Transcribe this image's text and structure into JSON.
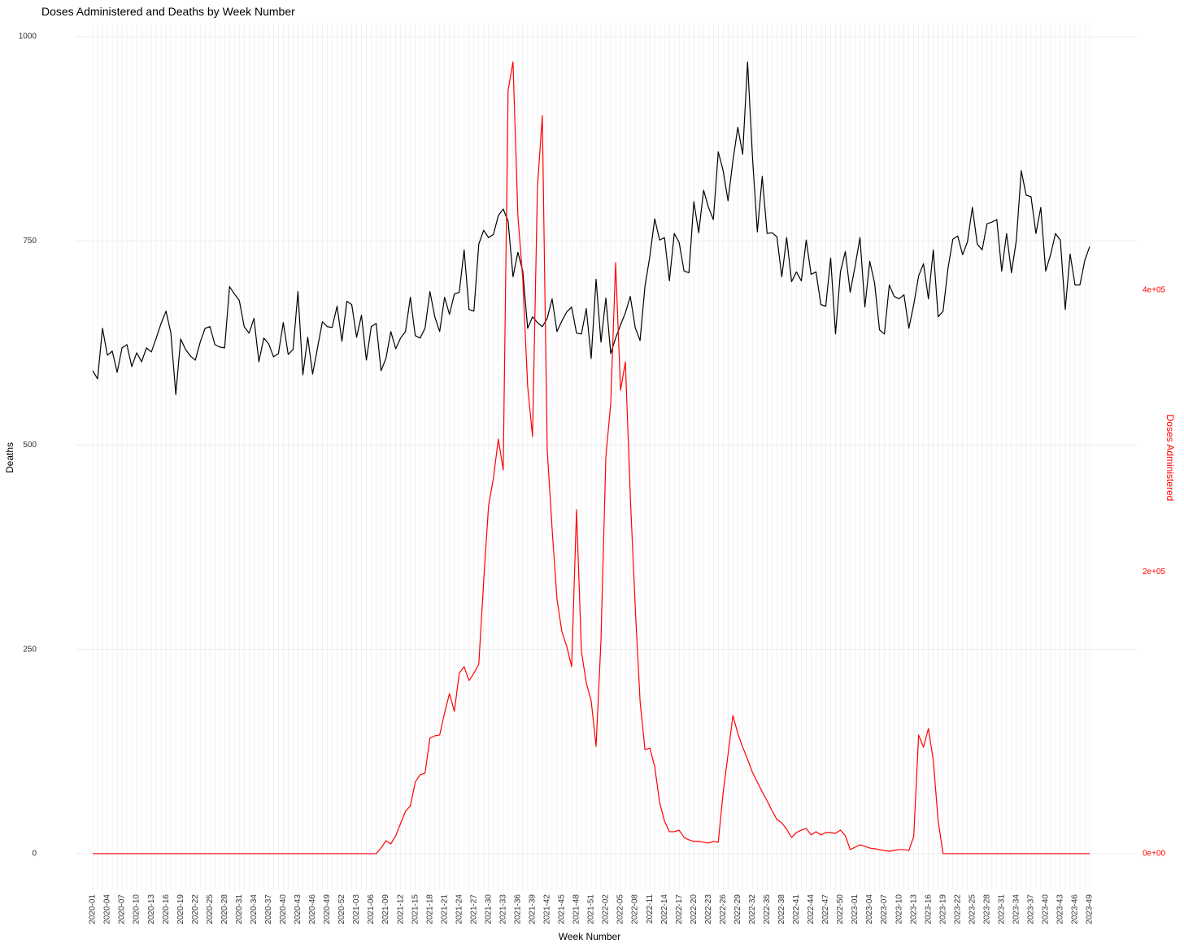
{
  "chart_data": {
    "type": "line",
    "title": "Doses Administered and Deaths by Week Number",
    "x_label": "Week Number",
    "y_label": "Deaths",
    "y2_label": "Doses Administered",
    "grid": true,
    "ylim": [
      -45,
      1017
    ],
    "yticks": [
      0,
      250,
      500,
      750,
      1000
    ],
    "y2lim": [
      -26000,
      590000
    ],
    "y2ticks": [
      {
        "value": 0,
        "label": "0e+00"
      },
      {
        "value": 200000,
        "label": "2e+05"
      },
      {
        "value": 400000,
        "label": "4e+05"
      }
    ],
    "y2_color": "#ff0000",
    "categories": [
      "2020-01",
      null,
      null,
      "2020-04",
      null,
      null,
      "2020-07",
      null,
      null,
      "2020-10",
      null,
      null,
      "2020-13",
      null,
      null,
      "2020-16",
      null,
      null,
      "2020-19",
      null,
      null,
      "2020-22",
      null,
      null,
      "2020-25",
      null,
      null,
      "2020-28",
      null,
      null,
      "2020-31",
      null,
      null,
      "2020-34",
      null,
      null,
      "2020-37",
      null,
      null,
      "2020-40",
      null,
      null,
      "2020-43",
      null,
      null,
      "2020-46",
      null,
      null,
      "2020-49",
      null,
      null,
      "2020-52",
      null,
      null,
      "2021-03",
      null,
      null,
      "2021-06",
      null,
      null,
      "2021-09",
      null,
      null,
      "2021-12",
      null,
      null,
      "2021-15",
      null,
      null,
      "2021-18",
      null,
      null,
      "2021-21",
      null,
      null,
      "2021-24",
      null,
      null,
      "2021-27",
      null,
      null,
      "2021-30",
      null,
      null,
      "2021-33",
      null,
      null,
      "2021-36",
      null,
      null,
      "2021-39",
      null,
      null,
      "2021-42",
      null,
      null,
      "2021-45",
      null,
      null,
      "2021-48",
      null,
      null,
      "2021-51",
      null,
      null,
      "2022-02",
      null,
      null,
      "2022-05",
      null,
      null,
      "2022-08",
      null,
      null,
      "2022-11",
      null,
      null,
      "2022-14",
      null,
      null,
      "2022-17",
      null,
      null,
      "2022-20",
      null,
      null,
      "2022-23",
      null,
      null,
      "2022-26",
      null,
      null,
      "2022-29",
      null,
      null,
      "2022-32",
      null,
      null,
      "2022-35",
      null,
      null,
      "2022-38",
      null,
      null,
      "2022-41",
      null,
      null,
      "2022-44",
      null,
      null,
      "2022-47",
      null,
      null,
      "2022-50",
      null,
      null,
      "2023-01",
      null,
      null,
      "2023-04",
      null,
      null,
      "2023-07",
      null,
      null,
      "2023-10",
      null,
      null,
      "2023-13",
      null,
      null,
      "2023-16",
      null,
      null,
      "2023-19",
      null,
      null,
      "2023-22",
      null,
      null,
      "2023-25",
      null,
      null,
      "2023-28",
      null,
      null,
      "2023-31",
      null,
      null,
      "2023-34",
      null,
      null,
      "2023-37",
      null,
      null,
      "2023-40",
      null,
      null,
      "2023-43",
      null,
      null,
      "2023-46",
      null,
      null,
      "2023-49"
    ],
    "series": [
      {
        "color": "#000000",
        "values": [
          591,
          581,
          643,
          610,
          615,
          589,
          619,
          623,
          596,
          613,
          602,
          619,
          614,
          631,
          649,
          664,
          637,
          562,
          630,
          617,
          609,
          604,
          626,
          643,
          645,
          623,
          620,
          619,
          694,
          685,
          677,
          645,
          637,
          655,
          602,
          631,
          624,
          608,
          612,
          650,
          611,
          617,
          688,
          586,
          632,
          587,
          619,
          651,
          645,
          644,
          670,
          627,
          676,
          672,
          632,
          659,
          604,
          645,
          649,
          591,
          606,
          639,
          618,
          631,
          639,
          681,
          634,
          631,
          643,
          688,
          657,
          639,
          681,
          660,
          685,
          687,
          739,
          666,
          664,
          746,
          763,
          754,
          758,
          781,
          789,
          774,
          706,
          736,
          713,
          643,
          657,
          650,
          645,
          655,
          679,
          639,
          652,
          663,
          669,
          637,
          636,
          667,
          606,
          703,
          626,
          680,
          612,
          631,
          647,
          662,
          682,
          644,
          628,
          694,
          731,
          777,
          751,
          754,
          701,
          759,
          748,
          713,
          711,
          798,
          760,
          812,
          791,
          776,
          859,
          836,
          799,
          848,
          889,
          856,
          969,
          853,
          761,
          829,
          759,
          760,
          755,
          706,
          754,
          700,
          712,
          701,
          751,
          709,
          712,
          672,
          670,
          729,
          636,
          712,
          737,
          687,
          719,
          754,
          669,
          725,
          698,
          641,
          636,
          696,
          682,
          679,
          684,
          643,
          672,
          707,
          722,
          679,
          739,
          657,
          664,
          716,
          752,
          756,
          733,
          749,
          791,
          746,
          739,
          771,
          773,
          776,
          713,
          759,
          711,
          751,
          836,
          806,
          804,
          759,
          791,
          713,
          733,
          759,
          751,
          666,
          734,
          696,
          696,
          726,
          743
        ]
      },
      {
        "color": "#ff0000",
        "axis": "y2",
        "values": [
          0,
          0,
          0,
          0,
          0,
          0,
          0,
          0,
          0,
          0,
          0,
          0,
          0,
          0,
          0,
          0,
          0,
          0,
          0,
          0,
          0,
          0,
          0,
          0,
          0,
          0,
          0,
          0,
          0,
          0,
          0,
          0,
          0,
          0,
          0,
          0,
          0,
          0,
          0,
          0,
          0,
          0,
          0,
          0,
          0,
          0,
          0,
          0,
          0,
          0,
          0,
          0,
          0,
          0,
          0,
          0,
          0,
          0,
          0,
          4000,
          9200,
          6900,
          12700,
          21400,
          30000,
          34000,
          50800,
          56000,
          57100,
          82000,
          83700,
          84300,
          99900,
          113700,
          101000,
          128100,
          132800,
          122900,
          128100,
          134500,
          193400,
          247000,
          266700,
          294400,
          272400,
          542000,
          562200,
          453100,
          408100,
          331900,
          296100,
          472700,
          524100,
          286900,
          230900,
          180700,
          157600,
          147200,
          132800,
          244200,
          143700,
          121200,
          108500,
          76200,
          151200,
          281700,
          319800,
          419600,
          329000,
          349200,
          254000,
          176000,
          108500,
          73900,
          75000,
          61800,
          36400,
          23100,
          15600,
          15600,
          16700,
          11500,
          9800,
          8700,
          8700,
          8100,
          7500,
          8700,
          8100,
          43300,
          70400,
          98100,
          85400,
          75600,
          67000,
          57700,
          50800,
          43900,
          37500,
          30600,
          24200,
          21900,
          17300,
          11500,
          15000,
          16700,
          17900,
          13300,
          15600,
          13300,
          15000,
          15000,
          14400,
          16700,
          12700,
          2900,
          4600,
          6300,
          5200,
          4000,
          3500,
          2900,
          2300,
          1700,
          2300,
          2900,
          2900,
          2300,
          12100,
          84300,
          75600,
          88900,
          66400,
          23100,
          0,
          0,
          0,
          0,
          0,
          0,
          0,
          0,
          0,
          0,
          0,
          0,
          0,
          0,
          0,
          0,
          0,
          0,
          0,
          0,
          0,
          0,
          0,
          0,
          0,
          0,
          0,
          0,
          0,
          0,
          0
        ]
      }
    ]
  }
}
